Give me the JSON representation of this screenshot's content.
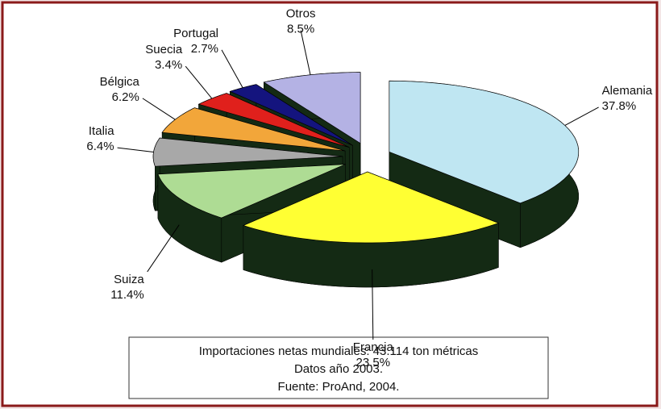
{
  "chart_data": {
    "type": "pie",
    "categories": [
      "Alemania",
      "Francia",
      "Suiza",
      "Italia",
      "Bélgica",
      "Suecia",
      "Portugal",
      "Otros"
    ],
    "values": [
      37.8,
      23.5,
      11.4,
      6.4,
      6.2,
      3.4,
      2.7,
      8.5
    ],
    "value_labels": [
      "37.8%",
      "23.5%",
      "11.4%",
      "6.4%",
      "6.2%",
      "3.4%",
      "2.7%",
      "8.5%"
    ],
    "colors": [
      "#bfe6f2",
      "#ffff33",
      "#aedc94",
      "#a8a8a8",
      "#f2a63a",
      "#e0201c",
      "#14147e",
      "#b4b2e4"
    ],
    "note": [
      "Importaciones netas mundiales: 43.114 ton métricas",
      "Datos año 2003.",
      "Fuente: ProAnd, 2004."
    ]
  }
}
